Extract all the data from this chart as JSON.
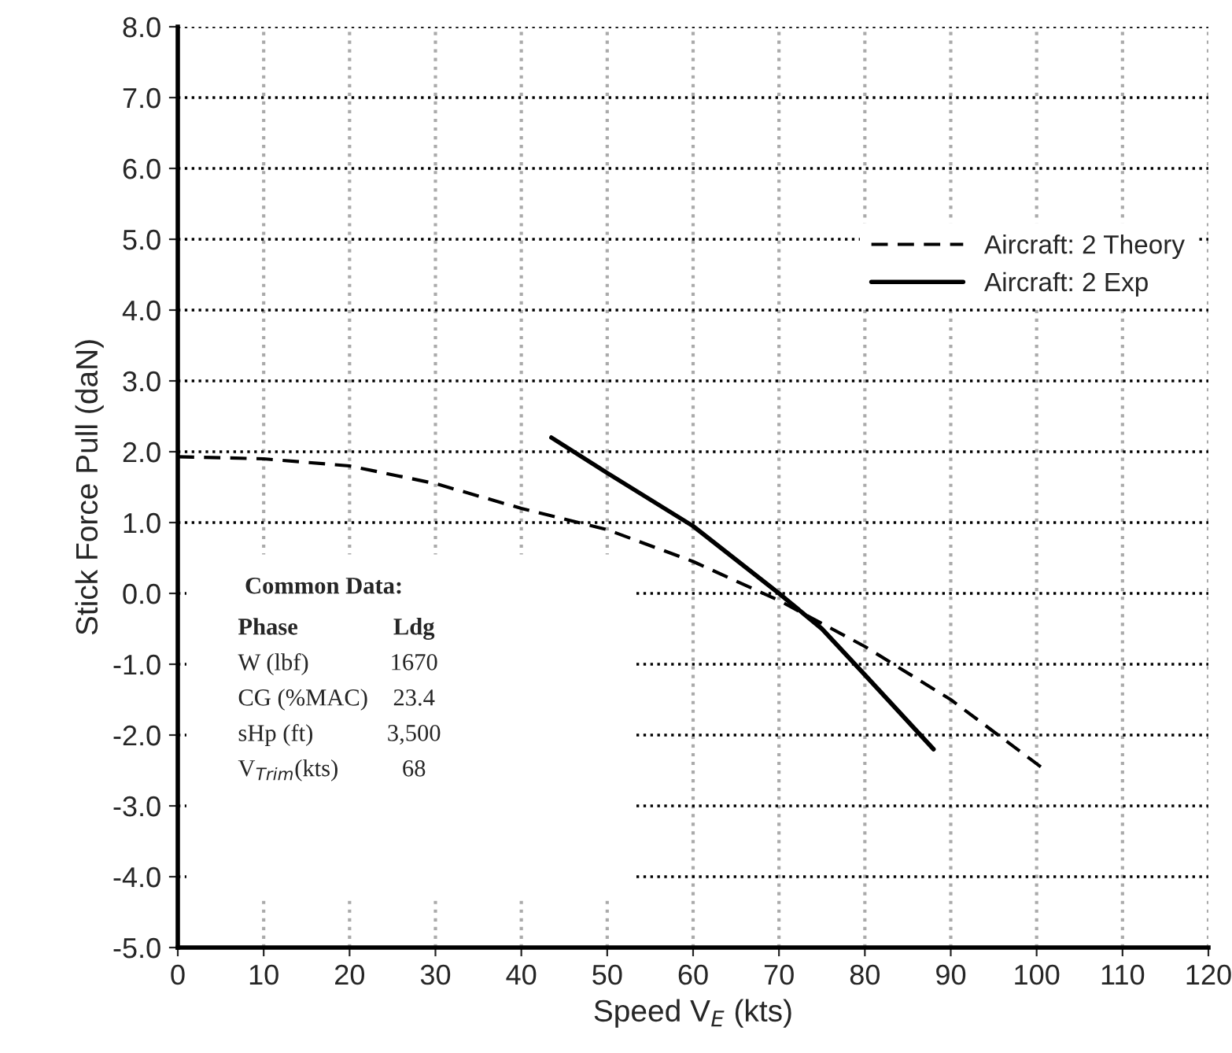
{
  "chart_data": {
    "type": "line",
    "xlabel": "Speed V$_{E}$ (kts)",
    "ylabel": "Stick Force Pull (daN)",
    "xlim": [
      0,
      120
    ],
    "xticks": [
      0,
      10,
      20,
      30,
      40,
      50,
      60,
      70,
      80,
      90,
      100,
      110,
      120
    ],
    "ylim": [
      -5,
      8
    ],
    "yticks": [
      {
        "value": -5,
        "label": "-5.0"
      },
      {
        "value": -4,
        "label": "-4.0"
      },
      {
        "value": -3,
        "label": "-3.0"
      },
      {
        "value": -2,
        "label": "-2.0"
      },
      {
        "value": -1,
        "label": "-1.0"
      },
      {
        "value": 0,
        "label": "0.0"
      },
      {
        "value": 1,
        "label": "1.0"
      },
      {
        "value": 2,
        "label": "2.0"
      },
      {
        "value": 3,
        "label": "3.0"
      },
      {
        "value": 4,
        "label": "4.0"
      },
      {
        "value": 5,
        "label": "5.0"
      },
      {
        "value": 6,
        "label": "6.0"
      },
      {
        "value": 7,
        "label": "7.0"
      },
      {
        "value": 8,
        "label": "8.0"
      }
    ],
    "grid": true,
    "legend": "top right",
    "series": [
      {
        "name": "Aircraft: 2 Theory",
        "color": "#000000",
        "line_style": "dashed",
        "x": [
          0,
          10,
          20,
          30,
          40,
          50,
          60,
          70,
          80,
          90,
          100.5
        ],
        "values": [
          1.93,
          1.9,
          1.8,
          1.55,
          1.2,
          0.9,
          0.45,
          -0.1,
          -0.75,
          -1.5,
          -2.45
        ]
      },
      {
        "name": "Aircraft: 2 Exp",
        "color": "#000000",
        "line_style": "solid",
        "x": [
          43.5,
          50,
          60,
          70,
          75,
          80,
          88
        ],
        "values": [
          2.2,
          1.7,
          0.95,
          0.0,
          -0.5,
          -1.15,
          -2.2
        ]
      }
    ],
    "annotations": [
      "Common Data:",
      "Phase",
      "Ldg",
      "W (lbf)",
      "1670",
      "CG (%MAC)",
      "23.4",
      "sHp (ft)",
      "3,500",
      "V$_{Trim}$(kts)",
      "68"
    ]
  }
}
